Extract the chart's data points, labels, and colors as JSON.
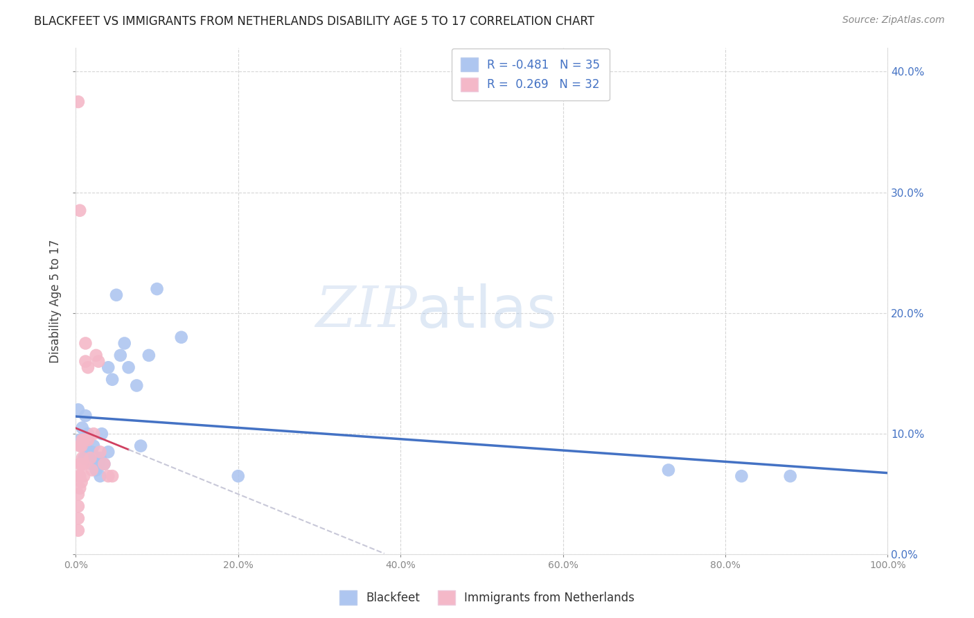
{
  "title": "BLACKFEET VS IMMIGRANTS FROM NETHERLANDS DISABILITY AGE 5 TO 17 CORRELATION CHART",
  "source": "Source: ZipAtlas.com",
  "ylabel": "Disability Age 5 to 17",
  "legend_label_1": "Blackfeet",
  "legend_label_2": "Immigrants from Netherlands",
  "r1": -0.481,
  "n1": 35,
  "r2": 0.269,
  "n2": 32,
  "color1": "#aec6f0",
  "color2": "#f4b8c8",
  "line1_color": "#4472c4",
  "line2_color": "#d04060",
  "line2_ext_color": "#c8c8d8",
  "watermark_zip": "ZIP",
  "watermark_atlas": "atlas",
  "xmin": 0.0,
  "xmax": 1.0,
  "ymin": 0.0,
  "ymax": 0.42,
  "blue_points_x": [
    0.003,
    0.005,
    0.008,
    0.01,
    0.01,
    0.012,
    0.015,
    0.015,
    0.018,
    0.02,
    0.02,
    0.022,
    0.025,
    0.025,
    0.028,
    0.03,
    0.03,
    0.032,
    0.035,
    0.04,
    0.04,
    0.045,
    0.05,
    0.055,
    0.06,
    0.065,
    0.075,
    0.08,
    0.09,
    0.1,
    0.13,
    0.2,
    0.73,
    0.82,
    0.88
  ],
  "blue_points_y": [
    0.12,
    0.095,
    0.105,
    0.09,
    0.08,
    0.115,
    0.1,
    0.085,
    0.085,
    0.085,
    0.075,
    0.09,
    0.08,
    0.07,
    0.075,
    0.08,
    0.065,
    0.1,
    0.075,
    0.155,
    0.085,
    0.145,
    0.215,
    0.165,
    0.175,
    0.155,
    0.14,
    0.09,
    0.165,
    0.22,
    0.18,
    0.065,
    0.07,
    0.065,
    0.065
  ],
  "pink_points_x": [
    0.003,
    0.003,
    0.003,
    0.003,
    0.003,
    0.005,
    0.005,
    0.005,
    0.005,
    0.007,
    0.007,
    0.007,
    0.008,
    0.008,
    0.01,
    0.01,
    0.01,
    0.012,
    0.012,
    0.015,
    0.015,
    0.018,
    0.02,
    0.022,
    0.025,
    0.028,
    0.03,
    0.035,
    0.04,
    0.045,
    0.005,
    0.003
  ],
  "pink_points_y": [
    0.02,
    0.03,
    0.04,
    0.05,
    0.065,
    0.055,
    0.065,
    0.075,
    0.09,
    0.06,
    0.075,
    0.09,
    0.08,
    0.095,
    0.065,
    0.075,
    0.095,
    0.16,
    0.175,
    0.155,
    0.095,
    0.08,
    0.07,
    0.1,
    0.165,
    0.16,
    0.085,
    0.075,
    0.065,
    0.065,
    0.285,
    0.375
  ]
}
